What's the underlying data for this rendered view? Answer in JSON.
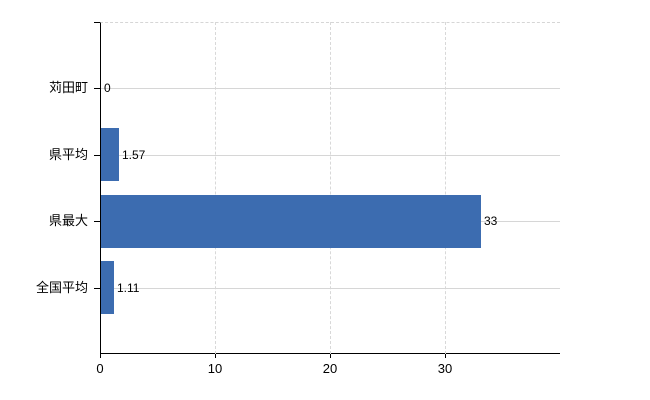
{
  "chart_data": {
    "type": "bar",
    "orientation": "horizontal",
    "title": "",
    "categories": [
      "苅田町",
      "県平均",
      "県最大",
      "全国平均"
    ],
    "values": [
      0,
      1.57,
      33,
      1.11
    ],
    "value_labels": [
      "0",
      "1.57",
      "33",
      "1.11"
    ],
    "x_tick_values": [
      0,
      10,
      20,
      30
    ],
    "x_tick_labels": [
      "0",
      "10",
      "20",
      "30"
    ],
    "xlim": [
      0,
      40
    ],
    "legend": "none",
    "grid": {
      "vertical": "dashed",
      "horizontal": "solid",
      "top_border": "dashed"
    },
    "colors": {
      "bar": "#3c6cb0",
      "axis": "#000000",
      "grid": "#d6d6d6",
      "text": "#000000",
      "background": "#ffffff"
    }
  }
}
